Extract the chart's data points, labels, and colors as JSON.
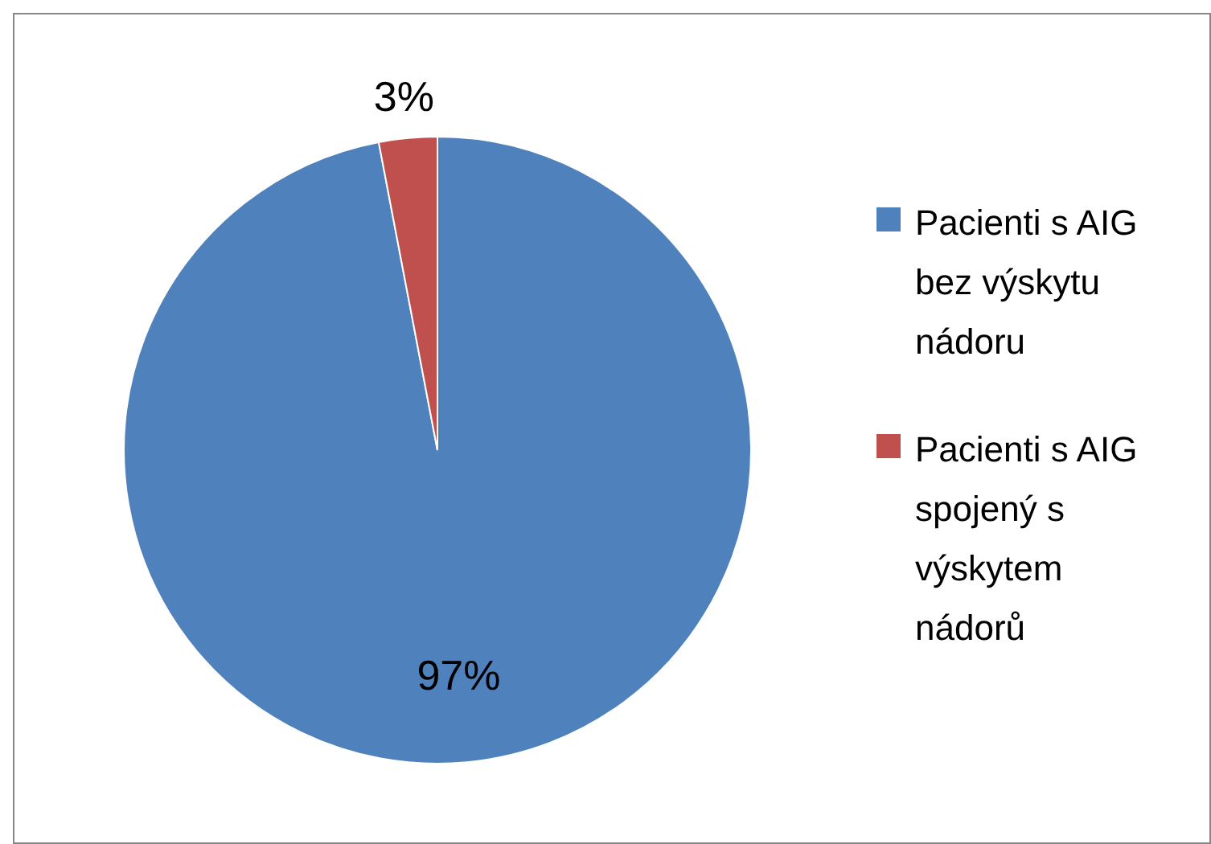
{
  "chart_data": {
    "type": "pie",
    "categories": [
      "Pacienti s AIG bez výskytu nádoru",
      "Pacienti s AIG spojený s výskytem nádorů"
    ],
    "values": [
      97,
      3
    ],
    "colors": [
      "#4f81bd",
      "#c0504d"
    ],
    "value_labels": [
      "97%",
      "3%"
    ],
    "legend": "right"
  }
}
